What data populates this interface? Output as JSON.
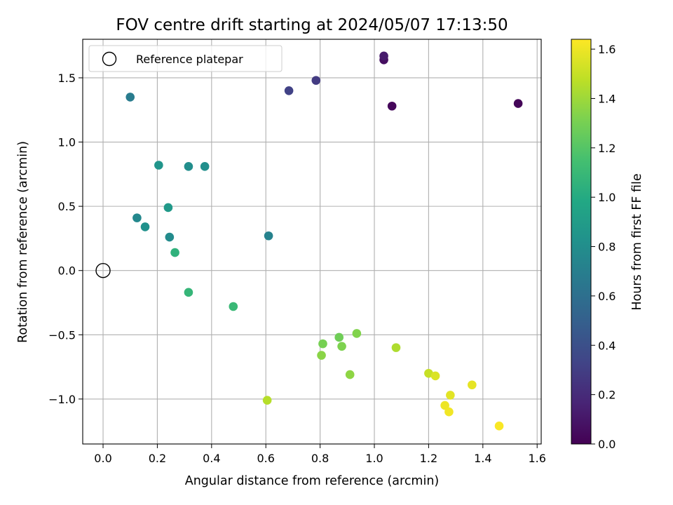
{
  "chart_data": {
    "type": "scatter",
    "title": "FOV centre drift starting at 2024/05/07 17:13:50",
    "xlabel": "Angular distance from reference (arcmin)",
    "ylabel": "Rotation from reference (arcmin)",
    "xlim": [
      -0.075,
      1.615
    ],
    "ylim": [
      -1.35,
      1.8
    ],
    "xticks": [
      "0.0",
      "0.2",
      "0.4",
      "0.6",
      "0.8",
      "1.0",
      "1.2",
      "1.4",
      "1.6"
    ],
    "yticks": [
      "1.5",
      "1.0",
      "0.5",
      "0.0",
      "−0.5",
      "−1.0"
    ],
    "grid": true,
    "legend": {
      "position": "top-left",
      "entries": [
        "Reference platepar"
      ]
    },
    "reference_point": {
      "x": 0.0,
      "y": 0.0
    },
    "colorbar": {
      "label": "Hours from first FF file",
      "colormap": "viridis",
      "range": [
        0.0,
        1.64
      ],
      "ticks": [
        "0.0",
        "0.2",
        "0.4",
        "0.6",
        "0.8",
        "1.0",
        "1.2",
        "1.4",
        "1.6"
      ]
    },
    "points": [
      {
        "x": 1.53,
        "y": 1.3,
        "hours": 0.02
      },
      {
        "x": 1.065,
        "y": 1.28,
        "hours": 0.03
      },
      {
        "x": 1.035,
        "y": 1.64,
        "hours": 0.06
      },
      {
        "x": 1.035,
        "y": 1.67,
        "hours": 0.12
      },
      {
        "x": 0.785,
        "y": 1.48,
        "hours": 0.28
      },
      {
        "x": 0.685,
        "y": 1.4,
        "hours": 0.32
      },
      {
        "x": 0.1,
        "y": 1.35,
        "hours": 0.68
      },
      {
        "x": 0.61,
        "y": 0.27,
        "hours": 0.72
      },
      {
        "x": 0.125,
        "y": 0.41,
        "hours": 0.76
      },
      {
        "x": 0.245,
        "y": 0.26,
        "hours": 0.78
      },
      {
        "x": 0.315,
        "y": 0.81,
        "hours": 0.8
      },
      {
        "x": 0.375,
        "y": 0.81,
        "hours": 0.81
      },
      {
        "x": 0.155,
        "y": 0.34,
        "hours": 0.82
      },
      {
        "x": 0.205,
        "y": 0.82,
        "hours": 0.85
      },
      {
        "x": 0.24,
        "y": 0.49,
        "hours": 0.88
      },
      {
        "x": 0.265,
        "y": 0.14,
        "hours": 1.05
      },
      {
        "x": 0.315,
        "y": -0.17,
        "hours": 1.08
      },
      {
        "x": 0.48,
        "y": -0.28,
        "hours": 1.1
      },
      {
        "x": 0.81,
        "y": -0.57,
        "hours": 1.3
      },
      {
        "x": 0.87,
        "y": -0.52,
        "hours": 1.28
      },
      {
        "x": 0.88,
        "y": -0.59,
        "hours": 1.32
      },
      {
        "x": 0.935,
        "y": -0.49,
        "hours": 1.33
      },
      {
        "x": 0.805,
        "y": -0.66,
        "hours": 1.35
      },
      {
        "x": 0.91,
        "y": -0.81,
        "hours": 1.36
      },
      {
        "x": 1.08,
        "y": -0.6,
        "hours": 1.44
      },
      {
        "x": 0.605,
        "y": -1.01,
        "hours": 1.46
      },
      {
        "x": 1.2,
        "y": -0.8,
        "hours": 1.5
      },
      {
        "x": 1.225,
        "y": -0.82,
        "hours": 1.55
      },
      {
        "x": 1.28,
        "y": -0.97,
        "hours": 1.57
      },
      {
        "x": 1.36,
        "y": -0.89,
        "hours": 1.58
      },
      {
        "x": 1.26,
        "y": -1.05,
        "hours": 1.6
      },
      {
        "x": 1.275,
        "y": -1.1,
        "hours": 1.61
      },
      {
        "x": 1.46,
        "y": -1.21,
        "hours": 1.63
      }
    ]
  }
}
